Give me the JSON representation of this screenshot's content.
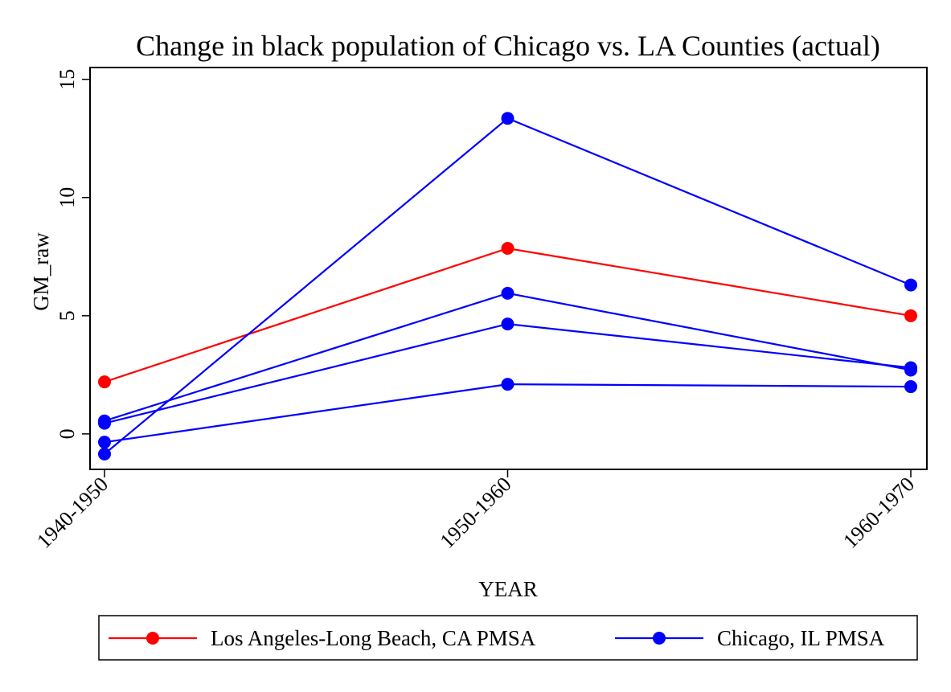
{
  "chart_data": {
    "type": "line",
    "title": "Change in black population of Chicago vs. LA Counties (actual)",
    "xlabel": "YEAR",
    "ylabel": "GM_raw",
    "categories": [
      "1940-1950",
      "1950-1960",
      "1960-1970"
    ],
    "ylim": [
      -1.5,
      15.5
    ],
    "yticks": [
      0,
      5,
      10,
      15
    ],
    "grid": false,
    "legend_position": "bottom",
    "legend": [
      {
        "label": "Los Angeles-Long Beach, CA PMSA",
        "color": "#ff0000"
      },
      {
        "label": "Chicago, IL PMSA",
        "color": "#0000ff"
      }
    ],
    "series": [
      {
        "group": "Los Angeles-Long Beach, CA PMSA",
        "color": "#ff0000",
        "values": [
          2.2,
          7.85,
          5.0
        ]
      },
      {
        "group": "Chicago, IL PMSA",
        "color": "#0000ff",
        "values": [
          -0.85,
          13.35,
          6.3
        ]
      },
      {
        "group": "Chicago, IL PMSA",
        "color": "#0000ff",
        "values": [
          0.55,
          5.95,
          2.7
        ]
      },
      {
        "group": "Chicago, IL PMSA",
        "color": "#0000ff",
        "values": [
          0.45,
          4.65,
          2.8
        ]
      },
      {
        "group": "Chicago, IL PMSA",
        "color": "#0000ff",
        "values": [
          -0.35,
          2.1,
          2.0
        ]
      }
    ]
  }
}
